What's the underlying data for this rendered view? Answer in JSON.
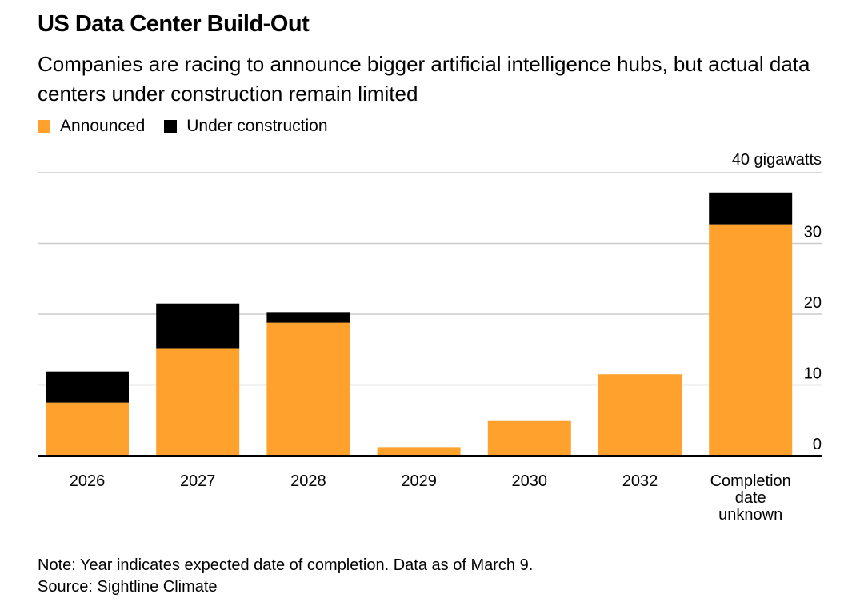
{
  "header": {
    "title": "US Data Center Build-Out",
    "subtitle": "Companies are racing to announce bigger artificial intelligence hubs, but actual data centers under construction remain limited"
  },
  "footer": {
    "note": "Note: Year indicates expected date of completion. Data as of March 9.",
    "source": "Source: Sightline Climate"
  },
  "colors": {
    "announced": "#FFA12C",
    "under_construction": "#000000",
    "grid": "#CCCCCC",
    "axis": "#000000"
  },
  "chart_data": {
    "type": "bar",
    "stacked": true,
    "title": "US Data Center Build-Out",
    "ylabel": "",
    "unit_label": "40 gigawatts",
    "ylim": [
      0,
      40
    ],
    "yticks": [
      0,
      10,
      20,
      30,
      40
    ],
    "ytick_labels": [
      "0",
      "10",
      "20",
      "30",
      ""
    ],
    "y_axis_side": "right",
    "grid": true,
    "legend_position": "top-left",
    "categories": [
      "2026",
      "2027",
      "2028",
      "2029",
      "2030",
      "2032",
      "Completion date unknown"
    ],
    "category_lines": [
      [
        "2026"
      ],
      [
        "2027"
      ],
      [
        "2028"
      ],
      [
        "2029"
      ],
      [
        "2030"
      ],
      [
        "2032"
      ],
      [
        "Completion",
        "date",
        "unknown"
      ]
    ],
    "series": [
      {
        "name": "Announced",
        "color": "#FFA12C",
        "values": [
          7.5,
          15.2,
          18.8,
          1.2,
          5.0,
          11.5,
          32.7
        ]
      },
      {
        "name": "Under construction",
        "color": "#000000",
        "values": [
          4.4,
          6.3,
          1.5,
          0,
          0,
          0,
          4.5
        ]
      }
    ]
  }
}
